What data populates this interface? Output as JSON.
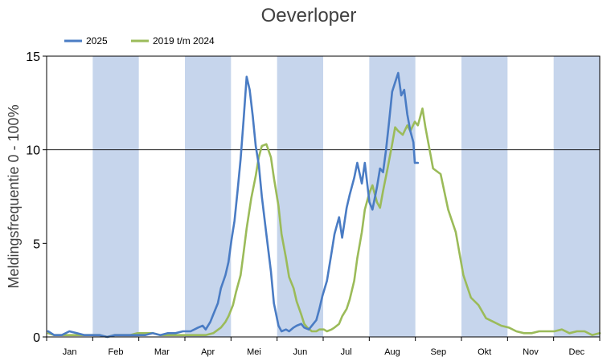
{
  "chart_data": {
    "type": "line",
    "title": "Oeverloper",
    "ylabel": "Meldingsfrequentie 0 - 100%",
    "xlabel": "",
    "ylim": [
      0,
      15
    ],
    "yticks": [
      "0",
      "5",
      "10",
      "15"
    ],
    "months": [
      "Jan",
      "Feb",
      "Mar",
      "Apr",
      "Mei",
      "Jun",
      "Jul",
      "Aug",
      "Sep",
      "Okt",
      "Nov",
      "Dec"
    ],
    "shaded_months": [
      1,
      3,
      5,
      7,
      9,
      11
    ],
    "shade_color": "#c6d5ec",
    "reference_line": 10,
    "legend_position": "top-left",
    "series": [
      {
        "name": "2025",
        "color": "#4a7cc4",
        "x": [
          1,
          5,
          10,
          15,
          20,
          25,
          30,
          35,
          40,
          45,
          50,
          55,
          60,
          65,
          70,
          75,
          80,
          85,
          90,
          95,
          100,
          103,
          105,
          108,
          110,
          113,
          115,
          118,
          120,
          122,
          124,
          126,
          128,
          130,
          132,
          134,
          136,
          138,
          140,
          142,
          145,
          148,
          150,
          153,
          155,
          158,
          160,
          163,
          165,
          168,
          170,
          173,
          175,
          178,
          180,
          182,
          185,
          188,
          190,
          193,
          195,
          198,
          200,
          203,
          205,
          208,
          210,
          213,
          215,
          218,
          220,
          222,
          224,
          226,
          228,
          230,
          232,
          234,
          236,
          238,
          240,
          242,
          243,
          245
        ],
        "values": [
          0.3,
          0.1,
          0.1,
          0.3,
          0.2,
          0.1,
          0.1,
          0.1,
          0.0,
          0.1,
          0.1,
          0.1,
          0.1,
          0.1,
          0.2,
          0.1,
          0.2,
          0.2,
          0.3,
          0.3,
          0.5,
          0.6,
          0.4,
          0.8,
          1.2,
          1.8,
          2.6,
          3.3,
          4.0,
          5.2,
          6.2,
          7.8,
          9.5,
          11.6,
          13.9,
          13.2,
          11.8,
          10.2,
          9.2,
          7.5,
          5.5,
          3.5,
          1.8,
          0.6,
          0.3,
          0.4,
          0.3,
          0.5,
          0.6,
          0.7,
          0.5,
          0.4,
          0.6,
          0.9,
          1.5,
          2.2,
          3.0,
          4.5,
          5.5,
          6.4,
          5.3,
          6.9,
          7.6,
          8.5,
          9.3,
          8.2,
          9.3,
          7.2,
          6.8,
          8.0,
          9.0,
          8.8,
          10.0,
          11.5,
          13.1,
          13.6,
          14.1,
          12.9,
          13.2,
          11.9,
          11.0,
          10.4,
          9.3,
          9.3
        ]
      },
      {
        "name": "2019 t/m 2024",
        "color": "#9bbb59",
        "x": [
          1,
          5,
          10,
          15,
          20,
          25,
          30,
          35,
          40,
          45,
          50,
          55,
          60,
          65,
          70,
          75,
          80,
          85,
          90,
          95,
          100,
          105,
          110,
          115,
          118,
          120,
          123,
          125,
          128,
          130,
          132,
          135,
          138,
          140,
          142,
          145,
          148,
          150,
          153,
          155,
          158,
          160,
          163,
          165,
          168,
          170,
          172,
          175,
          178,
          180,
          183,
          185,
          188,
          190,
          193,
          195,
          198,
          200,
          203,
          205,
          208,
          210,
          213,
          215,
          218,
          220,
          222,
          225,
          228,
          230,
          232,
          235,
          238,
          240,
          243,
          245,
          248,
          250,
          255,
          260,
          265,
          270,
          275,
          280,
          285,
          290,
          295,
          300,
          305,
          310,
          315,
          320,
          325,
          330,
          335,
          340,
          345,
          350,
          355,
          360,
          365
        ],
        "values": [
          0.2,
          0.1,
          0.1,
          0.1,
          0.1,
          0.1,
          0.1,
          0.1,
          0.0,
          0.1,
          0.1,
          0.1,
          0.2,
          0.2,
          0.2,
          0.1,
          0.1,
          0.1,
          0.1,
          0.1,
          0.1,
          0.1,
          0.2,
          0.5,
          0.8,
          1.1,
          1.7,
          2.4,
          3.3,
          4.5,
          5.8,
          7.4,
          8.6,
          9.6,
          10.2,
          10.3,
          9.6,
          8.5,
          7.0,
          5.5,
          4.2,
          3.2,
          2.6,
          1.9,
          1.2,
          0.7,
          0.5,
          0.3,
          0.3,
          0.4,
          0.4,
          0.3,
          0.4,
          0.5,
          0.7,
          1.1,
          1.5,
          2.0,
          3.0,
          4.2,
          5.6,
          6.8,
          7.7,
          8.1,
          7.2,
          6.9,
          7.8,
          9.0,
          10.3,
          11.2,
          11.0,
          10.8,
          11.3,
          11.0,
          11.5,
          11.3,
          12.2,
          11.2,
          9.0,
          8.7,
          6.8,
          5.6,
          3.3,
          2.1,
          1.7,
          1.0,
          0.8,
          0.6,
          0.5,
          0.3,
          0.2,
          0.2,
          0.3,
          0.3,
          0.3,
          0.4,
          0.2,
          0.3,
          0.3,
          0.1,
          0.2
        ]
      }
    ]
  }
}
